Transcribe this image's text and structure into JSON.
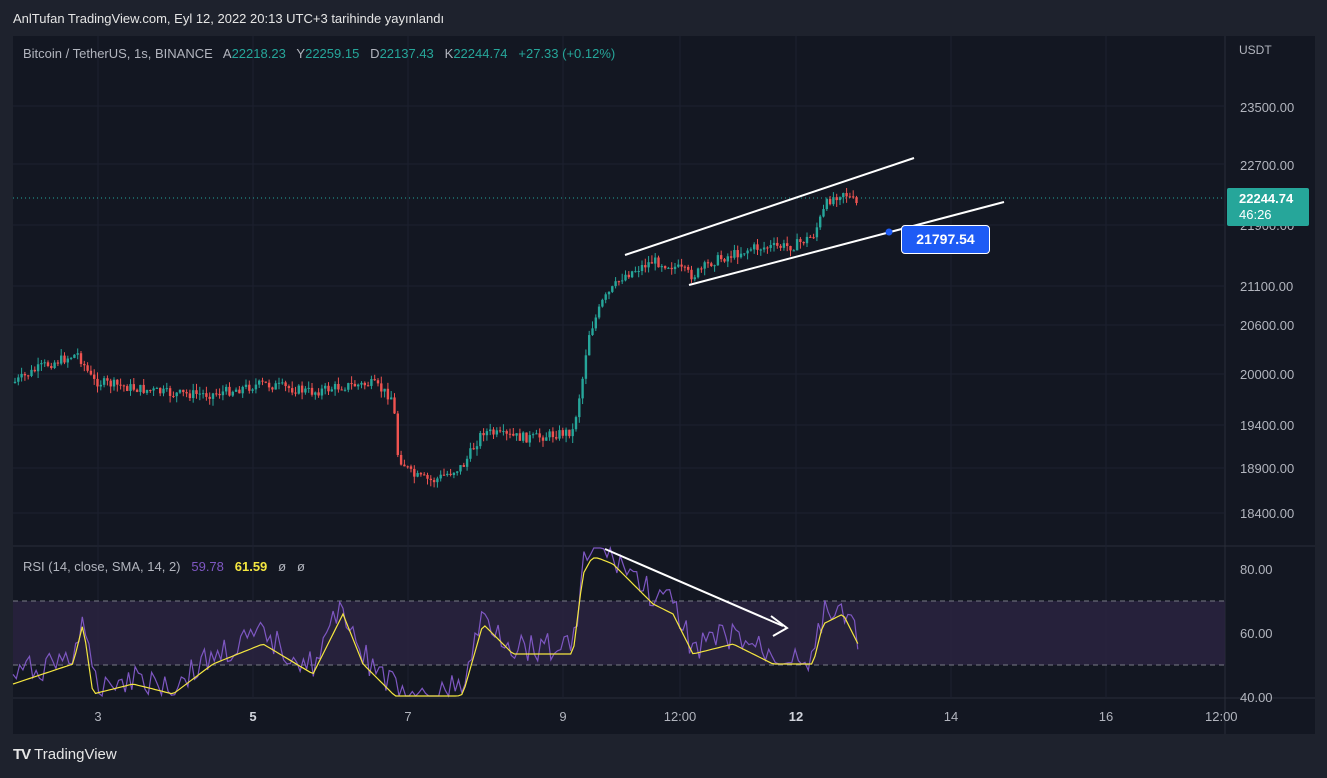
{
  "header": {
    "published_text": "AnlTufan TradingView.com, Eyl 12, 2022 20:13 UTC+3 tarihinde yayınlandı"
  },
  "legend": {
    "symbol": "Bitcoin / TetherUS, 1s, BINANCE",
    "open_key": "A",
    "open": "22218.23",
    "high_key": "Y",
    "high": "22259.15",
    "low_key": "D",
    "low": "22137.43",
    "close_key": "K",
    "close": "22244.74",
    "change": "+27.33 (+0.12%)"
  },
  "rsi_legend": {
    "label": "RSI (14, close, SMA, 14, 2)",
    "rsi_value": "59.78",
    "sma_value": "61.59",
    "extra1": "ø",
    "extra2": "ø"
  },
  "price_axis": {
    "currency": "USDT",
    "labels": [
      "23500.00",
      "22700.00",
      "21900.00",
      "21100.00",
      "20600.00",
      "20000.00",
      "19400.00",
      "18900.00",
      "18400.00"
    ]
  },
  "rsi_axis": {
    "labels": [
      "80.00",
      "60.00",
      "40.00"
    ]
  },
  "time_axis": {
    "labels": [
      "3",
      "5",
      "7",
      "9",
      "12:00",
      "12",
      "14",
      "16",
      "12:00"
    ]
  },
  "last_price": {
    "price": "22244.74",
    "countdown": "46:26"
  },
  "callout": {
    "price": "21797.54"
  },
  "brand": {
    "name": "TradingView",
    "logo": "TV"
  },
  "colors": {
    "up": "#26a69a",
    "down": "#ef5350",
    "rsi_line": "#7e57c2",
    "rsi_sma": "#f5e740",
    "rsi_band": "#2a2340",
    "callout": "#1e5bf5"
  }
}
